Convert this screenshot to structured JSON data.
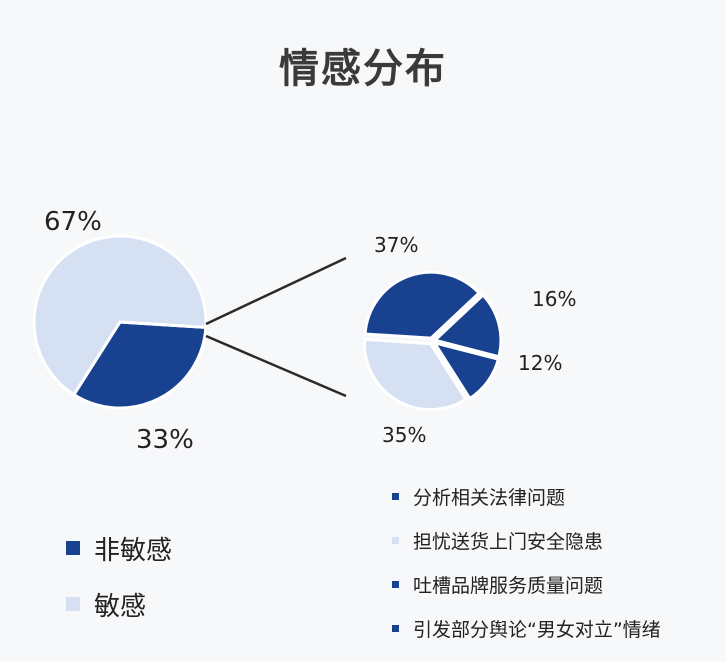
{
  "chart_data": [
    {
      "type": "pie",
      "title": "情感分布",
      "slices": [
        {
          "label": "非敏感",
          "value": 33,
          "display": "33%",
          "color": "#18428f"
        },
        {
          "label": "敏感",
          "value": 67,
          "display": "67%",
          "color": "#d6e0f3"
        }
      ]
    },
    {
      "type": "pie",
      "slices": [
        {
          "label": "分析相关法律问题",
          "value": 37,
          "display": "37%",
          "color": "#18428f"
        },
        {
          "label": "担忧送货上门安全隐患",
          "value": 35,
          "display": "35%",
          "color": "#d6e0f3"
        },
        {
          "label": "吐槽品牌服务质量问题",
          "value": 12,
          "display": "12%",
          "color": "#18428f"
        },
        {
          "label": "引发部分舆论“男女对立”情绪",
          "value": 16,
          "display": "16%",
          "color": "#18428f"
        }
      ]
    }
  ],
  "legend_left": [
    {
      "label": "非敏感",
      "color": "#18428f"
    },
    {
      "label": "敏感",
      "color": "#d6e0f3"
    }
  ],
  "legend_right": [
    {
      "label": "分析相关法律问题",
      "color": "#18428f"
    },
    {
      "label": "担忧送货上门安全隐患",
      "color": "#d6e0f3"
    },
    {
      "label": "吐槽品牌服务质量问题",
      "color": "#18428f"
    },
    {
      "label": "引发部分舆论“男女对立”情绪",
      "color": "#18428f"
    }
  ]
}
